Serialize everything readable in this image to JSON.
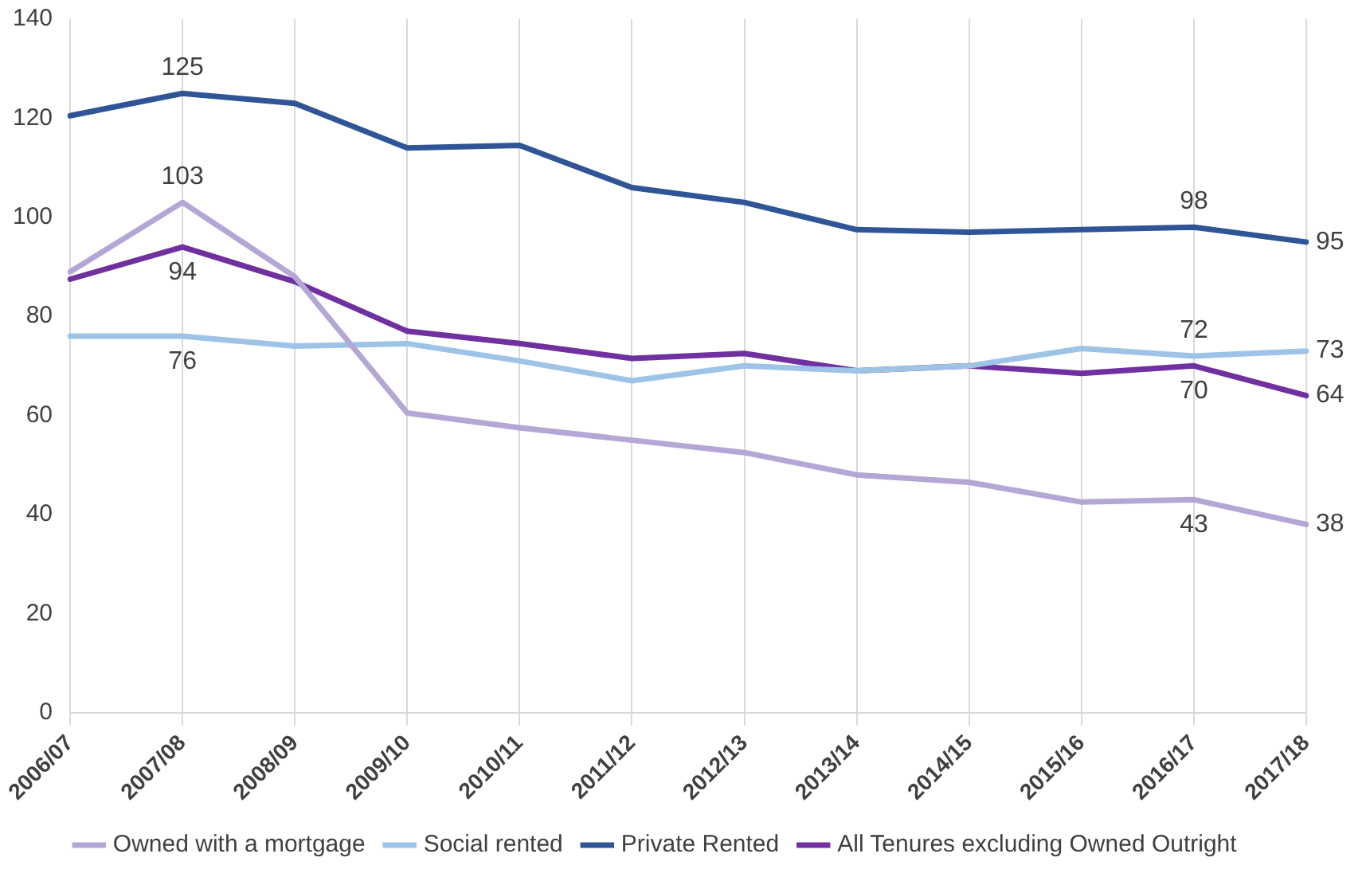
{
  "chart_data": {
    "type": "line",
    "categories": [
      "2006/07",
      "2007/08",
      "2008/09",
      "2009/10",
      "2010/11",
      "2011/12",
      "2012/13",
      "2013/14",
      "2014/15",
      "2015/16",
      "2016/17",
      "2017/18"
    ],
    "series": [
      {
        "name": "Owned with a mortgage",
        "color": "#b4a7d6",
        "values": [
          89,
          103,
          88,
          60.5,
          57.5,
          55,
          52.5,
          48,
          46.5,
          42.5,
          43,
          38
        ],
        "value_labels": [
          null,
          "103",
          null,
          null,
          null,
          null,
          null,
          null,
          null,
          null,
          "43",
          "38"
        ]
      },
      {
        "name": "Social rented",
        "color": "#9dc3e6",
        "values": [
          76,
          76,
          74,
          74.5,
          71,
          67,
          70,
          69,
          70,
          73.5,
          72,
          73
        ],
        "value_labels": [
          null,
          "76",
          null,
          null,
          null,
          null,
          null,
          null,
          null,
          null,
          "72",
          "73"
        ]
      },
      {
        "name": "Private Rented",
        "color": "#2f5597",
        "values": [
          120.5,
          125,
          123,
          114,
          114.5,
          106,
          103,
          97.5,
          97,
          97.5,
          98,
          95
        ],
        "value_labels": [
          null,
          "125",
          null,
          null,
          null,
          null,
          null,
          null,
          null,
          null,
          "98",
          "95"
        ]
      },
      {
        "name": "All Tenures excluding Owned Outright",
        "color": "#7030a0",
        "values": [
          87.5,
          94,
          87,
          77,
          74.5,
          71.5,
          72.5,
          69,
          70,
          68.5,
          70,
          64
        ],
        "value_labels": [
          null,
          "94",
          null,
          null,
          null,
          null,
          null,
          null,
          null,
          null,
          "70",
          "64"
        ]
      }
    ],
    "ylim": [
      0,
      140
    ],
    "yticks": [
      0,
      20,
      40,
      60,
      80,
      100,
      120,
      140
    ],
    "grid": "x",
    "legend": "bottom",
    "marker": "none",
    "line_style": "solid"
  }
}
